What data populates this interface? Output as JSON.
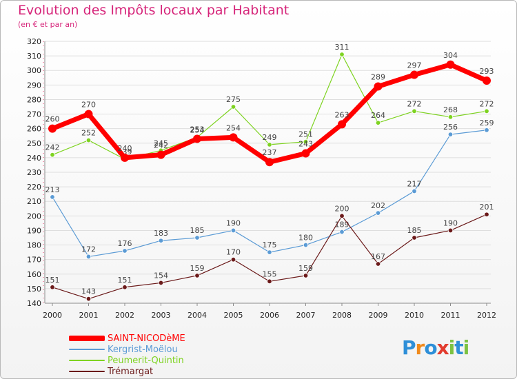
{
  "header": {
    "title": "Evolution des Impôts locaux par Habitant",
    "subtitle": "(en € et par an)"
  },
  "colors": {
    "title": "#d6257a",
    "grid": "#dedede",
    "axis": "#8c8c8c",
    "text": "#222222"
  },
  "chart_data": {
    "type": "line",
    "title": "Evolution des Impôts locaux par Habitant",
    "subtitle": "(en € et par an)",
    "xlabel": "",
    "ylabel": "",
    "x": [
      "2000",
      "2001",
      "2002",
      "2003",
      "2004",
      "2005",
      "2006",
      "2007",
      "2008",
      "2009",
      "2010",
      "2011",
      "2012"
    ],
    "ylim": [
      140,
      320
    ],
    "yticks": [
      140,
      150,
      160,
      170,
      180,
      190,
      200,
      210,
      220,
      230,
      240,
      250,
      260,
      270,
      280,
      290,
      300,
      310,
      320
    ],
    "grid": true,
    "legend_position": "bottom-left",
    "series": [
      {
        "name": "SAINT-NICODèME",
        "color": "#ff0000",
        "emphasis": true,
        "values": [
          260,
          270,
          240,
          242,
          253,
          254,
          237,
          243,
          263,
          289,
          297,
          304,
          293
        ],
        "labels": [
          "260",
          "270",
          "240",
          "242",
          "253",
          "254",
          "237",
          "243",
          "263",
          "289",
          "297",
          "304",
          "293"
        ]
      },
      {
        "name": "Kergrist-Moëlou",
        "color": "#5b9bd5",
        "emphasis": false,
        "values": [
          213,
          172,
          176,
          183,
          185,
          190,
          175,
          180,
          189,
          202,
          217,
          256,
          259
        ],
        "labels": [
          "213",
          "172",
          "176",
          "183",
          "185",
          "190",
          "175",
          "180",
          "189",
          "202",
          "217",
          "256",
          "259"
        ]
      },
      {
        "name": "Peumerit-Quintin",
        "color": "#7ed321",
        "emphasis": false,
        "values": [
          242,
          252,
          239,
          245,
          254,
          275,
          249,
          251,
          311,
          264,
          272,
          268,
          272
        ],
        "labels": [
          "242",
          "252",
          "239",
          "245",
          "254",
          "275",
          "249",
          "251",
          "311",
          "264",
          "272",
          "268",
          "272"
        ]
      },
      {
        "name": "Trémargat",
        "color": "#6b1a1a",
        "emphasis": false,
        "values": [
          151,
          143,
          151,
          154,
          159,
          170,
          155,
          159,
          200,
          167,
          185,
          190,
          201
        ],
        "labels": [
          "151",
          "143",
          "151",
          "154",
          "159",
          "170",
          "155",
          "159",
          "200",
          "167",
          "185",
          "190",
          "201"
        ]
      }
    ]
  },
  "brand": {
    "name": "Proxiti",
    "letter_colors": [
      "#2e8fd8",
      "#f08a1c",
      "#2e8fd8",
      "#e23b2e",
      "#7cc242",
      "#2e8fd8",
      "#7cc242"
    ]
  }
}
